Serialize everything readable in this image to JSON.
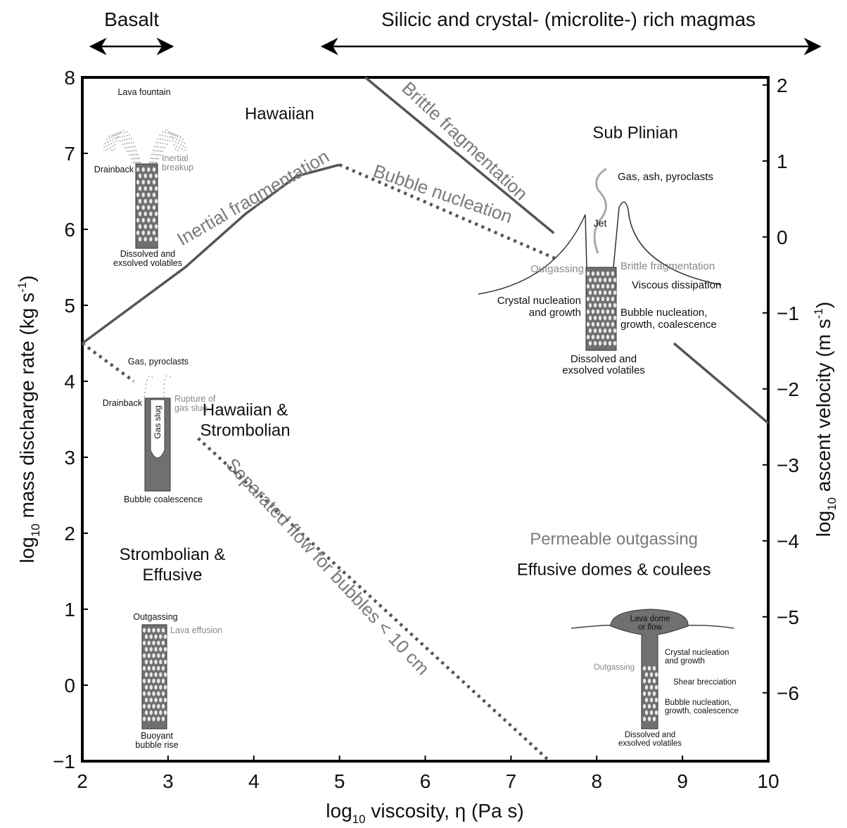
{
  "chart_data": {
    "type": "regime-diagram",
    "xlabel": {
      "prefix": "log",
      "sub": "10",
      "rest": " viscosity, η (Pa s)"
    },
    "ylabel": {
      "prefix": "log",
      "sub": "10",
      "rest": " mass discharge rate (kg s",
      "sup": "-1",
      "close": ")"
    },
    "y2label": {
      "prefix": "log",
      "sub": "10",
      "rest": " ascent velocity (m s",
      "sup": "-1",
      "close": ")"
    },
    "xlim": [
      2,
      10
    ],
    "ylim": [
      -1,
      8
    ],
    "xticks": [
      "2",
      "3",
      "4",
      "5",
      "6",
      "7",
      "8",
      "9",
      "10"
    ],
    "yticks": [
      "−1",
      "0",
      "1",
      "2",
      "3",
      "4",
      "5",
      "6",
      "7",
      "8"
    ],
    "y2ticks": [
      {
        "label": "2",
        "y": 7.9
      },
      {
        "label": "1",
        "y": 6.9
      },
      {
        "label": "0",
        "y": 5.9
      },
      {
        "label": "−1",
        "y": 4.9
      },
      {
        "label": "−2",
        "y": 3.9
      },
      {
        "label": "−3",
        "y": 2.9
      },
      {
        "label": "−4",
        "y": 1.9
      },
      {
        "label": "−5",
        "y": 0.9
      },
      {
        "label": "−6",
        "y": -0.1
      }
    ],
    "top_ranges": [
      {
        "label": "Basalt",
        "x_from": 2.1,
        "x_to": 3.05
      },
      {
        "label": "Silicic and crystal- (microlite-) rich magmas",
        "x_from": 4.8,
        "x_to": 10.6
      }
    ],
    "boundaries": [
      {
        "name": "Inertial fragmentation",
        "style": "solid",
        "points": [
          [
            2,
            4.5
          ],
          [
            3.2,
            5.5
          ],
          [
            3.9,
            6.2
          ],
          [
            4.5,
            6.7
          ],
          [
            5.0,
            6.85
          ]
        ]
      },
      {
        "name": "Bubble nucleation",
        "style": "dotted",
        "points": [
          [
            5.0,
            6.85
          ],
          [
            7.55,
            5.6
          ]
        ]
      },
      {
        "name": "Brittle fragmentation",
        "style": "solid",
        "points": [
          [
            5.3,
            8.0
          ],
          [
            7.5,
            5.95
          ]
        ]
      },
      {
        "name": "",
        "style": "solid",
        "points": [
          [
            8.9,
            4.5
          ],
          [
            10,
            3.45
          ]
        ]
      },
      {
        "name": "",
        "style": "dotted",
        "points": [
          [
            2,
            4.5
          ],
          [
            2.6,
            4.0
          ]
        ]
      },
      {
        "name": "Separated flow for bubbles < 10 cm",
        "style": "dotted",
        "points": [
          [
            3.35,
            3.25
          ],
          [
            7.45,
            -1.0
          ]
        ]
      }
    ],
    "boundary_labels": [
      {
        "text": "Inertial fragmentation",
        "x": 4.0,
        "y": 6.4,
        "angle": -30
      },
      {
        "text": "Bubble nucleation",
        "x": 6.2,
        "y": 6.45,
        "angle": 19
      },
      {
        "text": "Brittle fragmentation",
        "x": 6.45,
        "y": 7.15,
        "angle": 43
      },
      {
        "text": "Separated flow for bubbles < 10 cm",
        "x": 4.85,
        "y": 1.55,
        "angle": 47
      }
    ],
    "regimes": [
      {
        "lines": [
          "Hawaiian"
        ],
        "x": 4.3,
        "y": 7.45
      },
      {
        "lines": [
          "Sub Plinian"
        ],
        "x": 8.45,
        "y": 7.2
      },
      {
        "lines": [
          "Hawaiian &",
          "Strombolian"
        ],
        "x": 3.9,
        "y": 3.55
      },
      {
        "lines": [
          "Strombolian &",
          "Effusive"
        ],
        "x": 3.05,
        "y": 1.65
      },
      {
        "lines": [
          "Effusive domes & coulees"
        ],
        "x": 8.2,
        "y": 1.45
      }
    ],
    "gray_annotation": {
      "text": "Permeable outgassing",
      "x": 8.2,
      "y": 1.85
    },
    "inset_labels": {
      "lava_fountain": {
        "title": "Lava fountain",
        "drainback": "Drainback",
        "breakup": [
          "Inertial",
          "breakup"
        ],
        "bottom": [
          "Dissolved and",
          "exsolved volatiles"
        ]
      },
      "gas_slug": {
        "title": "Gas, pyroclasts",
        "drainback": "Drainback",
        "rupture": [
          "Rupture of",
          "gas slug"
        ],
        "slug": "Gas slug",
        "bottom": [
          "Bubble coalescence"
        ]
      },
      "effusive": {
        "top": "Outgassing",
        "side": "Lava effusion",
        "bottom": [
          "Buoyant",
          "bubble rise"
        ]
      },
      "subplinian": {
        "title": "Gas, ash, pyroclasts",
        "jet": "Jet",
        "outgassing": "Outgassing",
        "brittle": "Brittle fragmentation",
        "viscous": "Viscous dissipation",
        "crystal": [
          "Crystal nucleation",
          "and growth"
        ],
        "bubble": [
          "Bubble nucleation,",
          "growth, coalescence"
        ],
        "bottom": [
          "Dissolved and",
          "exsolved volatiles"
        ]
      },
      "dome": {
        "dome": [
          "Lava dome",
          "or flow"
        ],
        "crystal": [
          "Crystal nucleation",
          "and growth"
        ],
        "outgassing": "Outgassing",
        "shear": "Shear brecciation",
        "bubble": [
          "Bubble nucleation,",
          "growth, coalescence"
        ],
        "bottom": [
          "Dissolved and",
          "exsolved volatiles"
        ]
      }
    },
    "colors": {
      "line": "#555555",
      "frame": "#000000",
      "gray_text": "#7a7a7a",
      "fill": "#707070"
    }
  }
}
